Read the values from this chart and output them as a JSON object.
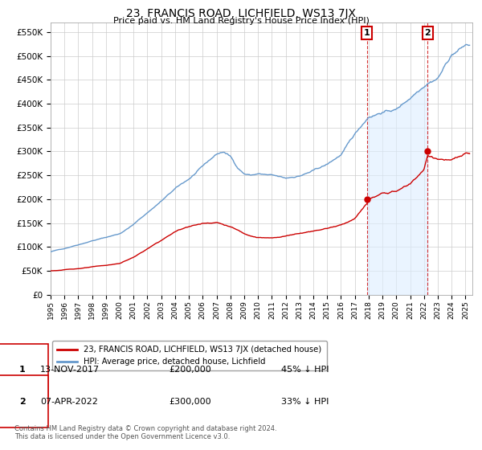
{
  "title": "23, FRANCIS ROAD, LICHFIELD, WS13 7JX",
  "subtitle": "Price paid vs. HM Land Registry's House Price Index (HPI)",
  "ylim": [
    0,
    570000
  ],
  "yticks": [
    0,
    50000,
    100000,
    150000,
    200000,
    250000,
    300000,
    350000,
    400000,
    450000,
    500000,
    550000
  ],
  "xlim_start": 1995.0,
  "xlim_end": 2025.5,
  "transaction_color": "#cc0000",
  "hpi_color": "#6699cc",
  "hpi_fill_color": "#ddeeff",
  "transaction_label": "23, FRANCIS ROAD, LICHFIELD, WS13 7JX (detached house)",
  "hpi_label": "HPI: Average price, detached house, Lichfield",
  "purchase1_label": "13-NOV-2017",
  "purchase1_price": "£200,000",
  "purchase1_hpi": "45% ↓ HPI",
  "purchase1_year": 2017.87,
  "purchase1_value": 200000,
  "purchase2_label": "07-APR-2022",
  "purchase2_price": "£300,000",
  "purchase2_hpi": "33% ↓ HPI",
  "purchase2_year": 2022.27,
  "purchase2_value": 300000,
  "footer": "Contains HM Land Registry data © Crown copyright and database right 2024.\nThis data is licensed under the Open Government Licence v3.0.",
  "grid_color": "#cccccc",
  "background_color": "#ffffff",
  "title_fontsize": 10,
  "subtitle_fontsize": 8
}
